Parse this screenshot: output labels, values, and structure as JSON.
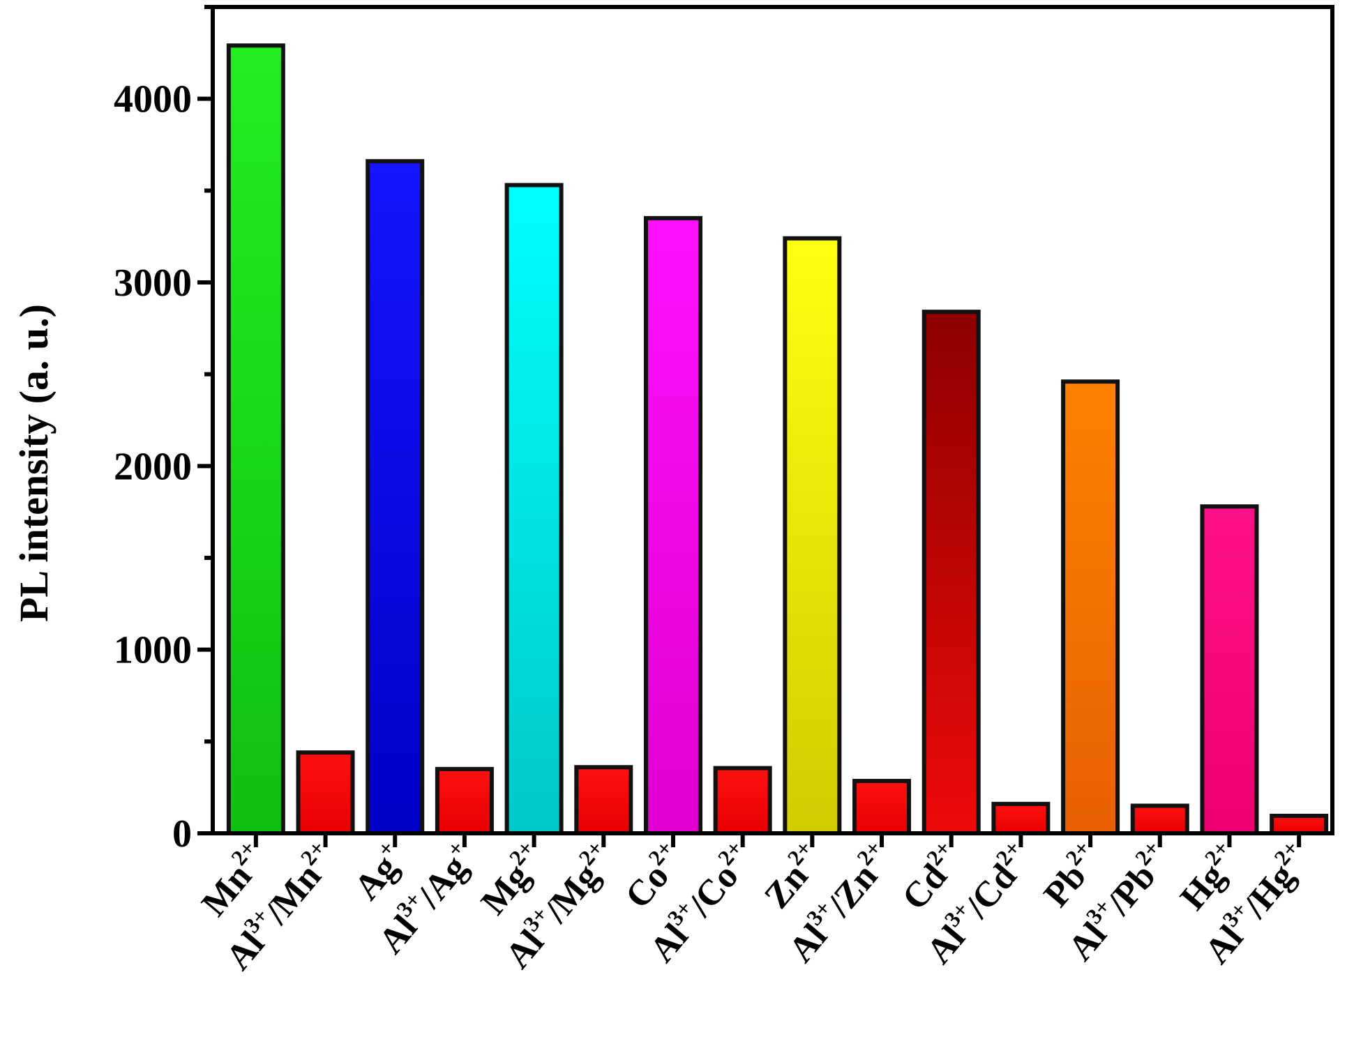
{
  "chart_data": {
    "type": "bar",
    "ylabel": "PL intensity (a. u.)",
    "xlabel": "",
    "ylim": [
      0,
      4500
    ],
    "yticks": [
      0,
      1000,
      2000,
      3000,
      4000
    ],
    "ytick_labels": [
      "0",
      "1000",
      "2000",
      "3000",
      "4000"
    ],
    "minor_ytick_step": 500,
    "grid": false,
    "categories": [
      {
        "base": "Mn",
        "charge": "2+",
        "prefix": ""
      },
      {
        "base": "Mn",
        "charge": "2+",
        "prefix": "Al",
        "prefix_charge": "3+"
      },
      {
        "base": "Ag",
        "charge": "+",
        "prefix": ""
      },
      {
        "base": "Ag",
        "charge": "+",
        "prefix": "Al",
        "prefix_charge": "3+"
      },
      {
        "base": "Mg",
        "charge": "2+",
        "prefix": ""
      },
      {
        "base": "Mg",
        "charge": "2+",
        "prefix": "Al",
        "prefix_charge": "3+"
      },
      {
        "base": "Co",
        "charge": "2+",
        "prefix": ""
      },
      {
        "base": "Co",
        "charge": "2+",
        "prefix": "Al",
        "prefix_charge": "3+"
      },
      {
        "base": "Zn",
        "charge": "2+",
        "prefix": ""
      },
      {
        "base": "Zn",
        "charge": "2+",
        "prefix": "Al",
        "prefix_charge": "3+"
      },
      {
        "base": "Cd",
        "charge": "2+",
        "prefix": ""
      },
      {
        "base": "Cd",
        "charge": "2+",
        "prefix": "Al",
        "prefix_charge": "3+"
      },
      {
        "base": "Pb",
        "charge": "2+",
        "prefix": ""
      },
      {
        "base": "Pb",
        "charge": "2+",
        "prefix": "Al",
        "prefix_charge": "3+"
      },
      {
        "base": "Hg",
        "charge": "2+",
        "prefix": ""
      },
      {
        "base": "Hg",
        "charge": "2+",
        "prefix": "Al",
        "prefix_charge": "3+"
      }
    ],
    "values": [
      4290,
      440,
      3660,
      350,
      3530,
      360,
      3350,
      355,
      3240,
      285,
      2840,
      160,
      2460,
      150,
      1780,
      95
    ],
    "bar_colors": [
      [
        "#22ee22",
        "#10c010"
      ],
      [
        "#ff1010",
        "#e80000"
      ],
      [
        "#1515ff",
        "#0000c8"
      ],
      [
        "#ff1010",
        "#e80000"
      ],
      [
        "#00ffff",
        "#00c8c8"
      ],
      [
        "#ff1010",
        "#e80000"
      ],
      [
        "#ff10ff",
        "#e000d0"
      ],
      [
        "#ff1010",
        "#e80000"
      ],
      [
        "#ffff10",
        "#d0cc00"
      ],
      [
        "#ff1010",
        "#e80000"
      ],
      [
        "#8e0000",
        "#ee0a0a"
      ],
      [
        "#ff1010",
        "#e80000"
      ],
      [
        "#ff8000",
        "#e86000"
      ],
      [
        "#ff1010",
        "#e80000"
      ],
      [
        "#ff1088",
        "#ee0070"
      ],
      [
        "#ff1010",
        "#e80000"
      ]
    ],
    "slash": "/"
  }
}
